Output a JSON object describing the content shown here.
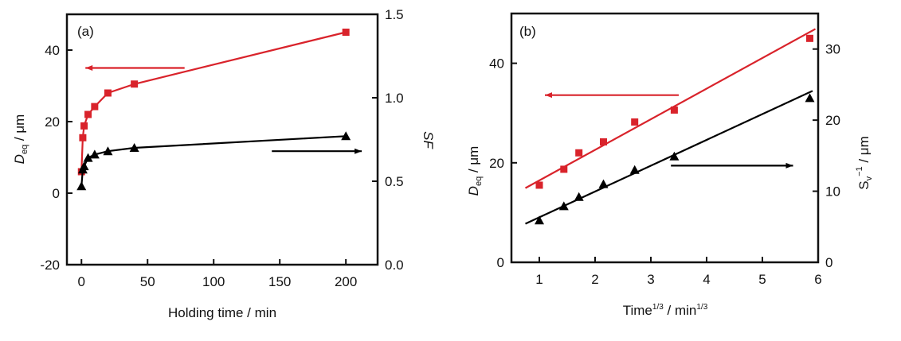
{
  "chart_data": [
    {
      "type": "line",
      "panel_label": "(a)",
      "xlabel": "Holding time / min",
      "ylabel_main": "D",
      "ylabel_sub": "eq",
      "ylabel_rest": " / μm",
      "y2label": "SF",
      "xlim": [
        -11,
        224
      ],
      "ylim": [
        -20,
        50
      ],
      "y2lim": [
        0,
        1.5
      ],
      "xticks": [
        0,
        50,
        100,
        150,
        200
      ],
      "yticks": [
        -20,
        0,
        20,
        40
      ],
      "y2ticks": [
        "0.0",
        "0.5",
        "1.0",
        "1.5"
      ],
      "series": [
        {
          "axis": "left",
          "marker": "square",
          "color": "#d9232b",
          "x": [
            0,
            1,
            2,
            5,
            10,
            20,
            40,
            200
          ],
          "y": [
            6,
            15.5,
            18.8,
            22,
            24.2,
            28,
            30.5,
            45
          ]
        },
        {
          "axis": "right",
          "marker": "triangle",
          "color": "#000000",
          "x": [
            0,
            1,
            2,
            5,
            10,
            20,
            40,
            200
          ],
          "y": [
            0.47,
            0.57,
            0.59,
            0.64,
            0.66,
            0.68,
            0.7,
            0.77
          ]
        }
      ],
      "arrows": [
        {
          "color": "#d9232b",
          "direction": "left",
          "axis": "left",
          "x": [
            3,
            78
          ],
          "y": 35
        },
        {
          "color": "#000000",
          "direction": "right",
          "axis": "right",
          "x": [
            144,
            212
          ],
          "y": 0.68
        }
      ]
    },
    {
      "type": "scatter",
      "panel_label": "(b)",
      "xlabel_main": "Time",
      "xlabel_sup": "1/3",
      "xlabel_rest": " / min",
      "xlabel_sup2": "1/3",
      "ylabel_main": "D",
      "ylabel_sub": "eq",
      "ylabel_rest": " / μm",
      "y2label_main": "S",
      "y2label_sub": "v",
      "y2label_sup": "−1",
      "y2label_rest": " / μm",
      "xlim": [
        0.5,
        6
      ],
      "ylim": [
        0,
        50
      ],
      "y2lim": [
        0,
        35
      ],
      "xticks": [
        1,
        2,
        3,
        4,
        5,
        6
      ],
      "yticks": [
        0,
        20,
        40
      ],
      "y2ticks": [
        0,
        10,
        20,
        30
      ],
      "series": [
        {
          "axis": "left",
          "marker": "square",
          "color": "#d9232b",
          "x": [
            1,
            1.44,
            1.71,
            2.15,
            2.71,
            3.42,
            5.85
          ],
          "y": [
            15.5,
            18.7,
            22,
            24.2,
            28.2,
            30.6,
            45
          ],
          "fit": {
            "slope": 6.15,
            "intercept": 10.3,
            "x": [
              0.75,
              5.95
            ]
          }
        },
        {
          "axis": "right",
          "marker": "triangle",
          "color": "#000000",
          "x": [
            1,
            1.44,
            1.71,
            2.15,
            2.71,
            3.42,
            5.85
          ],
          "y": [
            5.9,
            7.9,
            9.2,
            11.0,
            13.0,
            14.9,
            23.1
          ],
          "fit": {
            "slope": 3.63,
            "intercept": 2.7,
            "x": [
              0.75,
              5.9
            ]
          }
        }
      ],
      "arrows": [
        {
          "color": "#d9232b",
          "direction": "left",
          "axis": "left",
          "x": [
            1.1,
            3.5
          ],
          "y": 33.6
        },
        {
          "color": "#000000",
          "direction": "right",
          "axis": "right",
          "x": [
            3.36,
            5.55
          ],
          "y": 13.6
        }
      ]
    }
  ]
}
